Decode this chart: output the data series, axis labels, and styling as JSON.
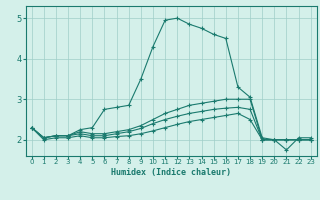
{
  "x": [
    0,
    1,
    2,
    3,
    4,
    5,
    6,
    7,
    8,
    9,
    10,
    11,
    12,
    13,
    14,
    15,
    16,
    17,
    18,
    19,
    20,
    21,
    22,
    23
  ],
  "line_main": [
    2.3,
    2.05,
    2.1,
    2.1,
    2.25,
    2.3,
    2.75,
    2.8,
    2.85,
    3.5,
    4.3,
    4.95,
    5.0,
    4.85,
    4.75,
    4.6,
    4.5,
    3.3,
    3.05,
    2.05,
    2.0,
    1.75,
    2.05,
    2.05
  ],
  "line_p90": [
    2.3,
    2.05,
    2.1,
    2.1,
    2.2,
    2.15,
    2.15,
    2.2,
    2.25,
    2.35,
    2.5,
    2.65,
    2.75,
    2.85,
    2.9,
    2.95,
    3.0,
    3.0,
    3.0,
    2.0,
    2.0,
    2.0,
    2.0,
    2.0
  ],
  "line_p75": [
    2.3,
    2.05,
    2.1,
    2.1,
    2.15,
    2.1,
    2.1,
    2.15,
    2.2,
    2.28,
    2.4,
    2.5,
    2.58,
    2.65,
    2.7,
    2.75,
    2.78,
    2.8,
    2.75,
    2.0,
    2.0,
    2.0,
    2.0,
    2.0
  ],
  "line_p50": [
    2.3,
    2.0,
    2.05,
    2.05,
    2.1,
    2.05,
    2.05,
    2.08,
    2.1,
    2.15,
    2.22,
    2.3,
    2.38,
    2.45,
    2.5,
    2.55,
    2.6,
    2.65,
    2.5,
    2.0,
    2.0,
    2.0,
    2.0,
    2.0
  ],
  "color": "#1a7a6e",
  "bg_color": "#d4f0ea",
  "grid_color": "#a0cec8",
  "xlabel": "Humidex (Indice chaleur)",
  "ylim": [
    1.6,
    5.3
  ],
  "xlim": [
    -0.5,
    23.5
  ],
  "yticks": [
    2,
    3,
    4,
    5
  ],
  "xticks": [
    0,
    1,
    2,
    3,
    4,
    5,
    6,
    7,
    8,
    9,
    10,
    11,
    12,
    13,
    14,
    15,
    16,
    17,
    18,
    19,
    20,
    21,
    22,
    23
  ]
}
